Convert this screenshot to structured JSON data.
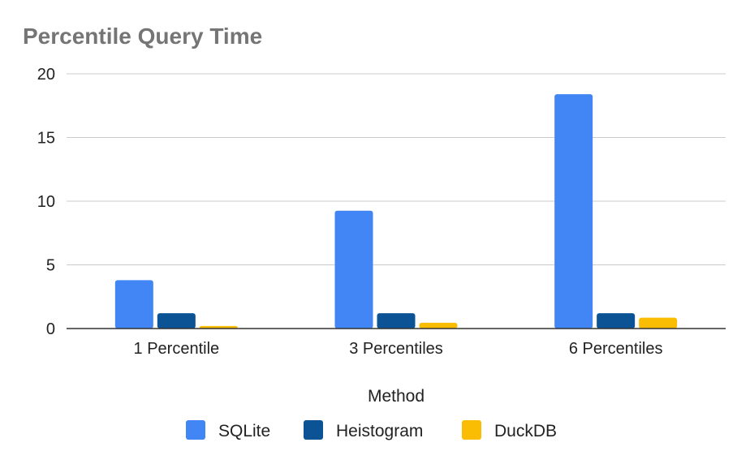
{
  "chart_data": {
    "type": "bar",
    "title": "Percentile Query Time",
    "xlabel": "Method",
    "ylabel": "",
    "categories": [
      "1 Percentile",
      "3 Percentiles",
      "6 Percentiles"
    ],
    "series": [
      {
        "name": "SQLite",
        "color": "#4285f4",
        "values": [
          3.8,
          9.25,
          18.4
        ]
      },
      {
        "name": "Heistogram",
        "color": "#0b5394",
        "values": [
          1.2,
          1.2,
          1.2
        ]
      },
      {
        "name": "DuckDB",
        "color": "#fbbc04",
        "values": [
          0.2,
          0.45,
          0.85
        ]
      }
    ],
    "ylim": [
      0,
      20
    ],
    "yticks": [
      0,
      5,
      10,
      15,
      20
    ],
    "grid": true,
    "legend_position": "bottom"
  }
}
